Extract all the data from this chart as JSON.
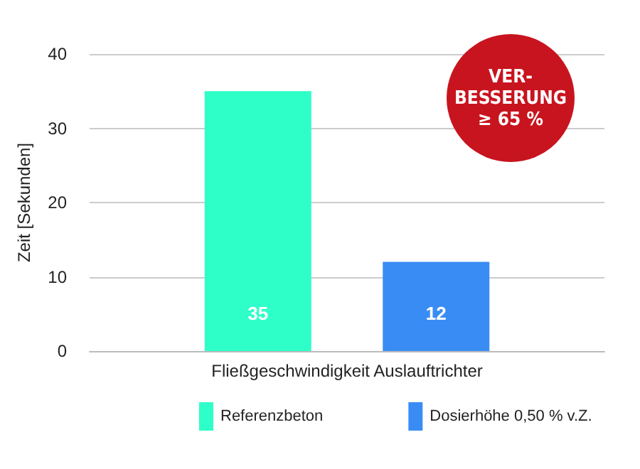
{
  "chart_data": {
    "type": "bar",
    "ylabel": "Zeit [Sekunden]",
    "categories": [
      "Fließgeschwindigkeit Auslauftrichter"
    ],
    "series": [
      {
        "name": "Referenzbeton",
        "color": "#2effc8",
        "values": [
          35
        ]
      },
      {
        "name": "Dosierhöhe 0,50 % v.Z.",
        "color": "#3a8cf5",
        "values": [
          12
        ]
      }
    ],
    "ylim": [
      0,
      40
    ],
    "yticks": [
      0,
      10,
      20,
      30,
      40
    ],
    "grid": "y",
    "legend": "bottom",
    "data_labels": true,
    "annotations": [
      "VER-\nBESSERUNG\n≥ 65 %"
    ]
  }
}
